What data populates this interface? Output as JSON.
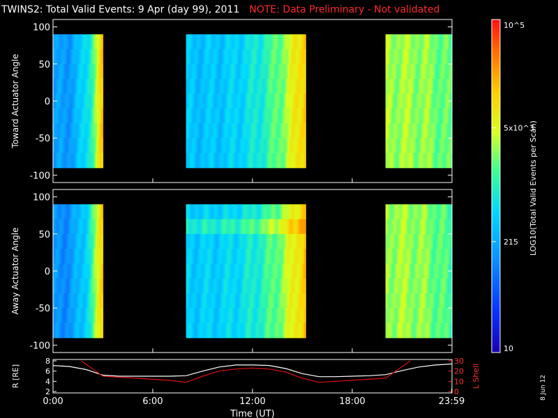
{
  "header": {
    "title": "TWINS2: Total Valid Events:  9 Apr (day  99), 2011",
    "note": "NOTE: Data Preliminary - Not validated"
  },
  "footer": {
    "date_stamp": "8 Jun 12"
  },
  "colors": {
    "note": "#ff2020",
    "axes": "#ffffff",
    "rshell_line": "#ffffff",
    "lshell_line": "#e01010"
  },
  "chart_data": [
    {
      "type": "heatmap",
      "ylabel": "Toward Actuator Angle",
      "xlim": [
        0,
        24
      ],
      "ylim": [
        -110,
        110
      ],
      "yticks": [
        -100,
        -50,
        0,
        50,
        100
      ],
      "data_y_range": [
        -90,
        90
      ],
      "segments": [
        {
          "start_hour": 0.0,
          "end_hour": 3.0,
          "start_level": 0.3,
          "end_level": 0.78
        },
        {
          "start_hour": 8.0,
          "end_hour": 15.2,
          "start_level": 0.38,
          "end_level": 0.8
        },
        {
          "start_hour": 20.0,
          "end_hour": 24.0,
          "start_level": 0.62,
          "end_level": 0.55
        }
      ]
    },
    {
      "type": "heatmap",
      "ylabel": "Away Actuator Angle",
      "xlim": [
        0,
        24
      ],
      "ylim": [
        -110,
        110
      ],
      "yticks": [
        -100,
        -50,
        0,
        50,
        100
      ],
      "data_y_range": [
        -90,
        90
      ],
      "segments": [
        {
          "start_hour": 0.0,
          "end_hour": 3.0,
          "start_level": 0.28,
          "end_level": 0.78
        },
        {
          "start_hour": 8.0,
          "end_hour": 15.2,
          "start_level": 0.4,
          "end_level": 0.8
        },
        {
          "start_hour": 20.0,
          "end_hour": 24.0,
          "start_level": 0.62,
          "end_level": 0.52
        }
      ]
    },
    {
      "type": "line",
      "xlabel": "Time (UT)",
      "xlim": [
        0,
        24
      ],
      "xticks": [
        "0:00",
        "6:00",
        "12:00",
        "18:00",
        "23:59"
      ],
      "ylabel_left": "R [RE]",
      "ylim_left": [
        2,
        8
      ],
      "yticks_left": [
        2,
        4,
        6,
        8
      ],
      "ylabel_right": "L Shell",
      "ylim_right": [
        0,
        30
      ],
      "yticks_right": [
        0,
        10,
        20,
        30
      ],
      "series": [
        {
          "axis": "left",
          "x": [
            0,
            1,
            2,
            3,
            4,
            5,
            6,
            7,
            8,
            9,
            10,
            11,
            12,
            13,
            14,
            15,
            16,
            17,
            18,
            19,
            20,
            21,
            22,
            23,
            24
          ],
          "y": [
            7.1,
            6.9,
            6.3,
            5.2,
            5.0,
            5.0,
            5.0,
            5.0,
            5.1,
            6.0,
            6.8,
            7.2,
            7.2,
            7.1,
            6.5,
            5.5,
            4.9,
            4.9,
            5.0,
            5.1,
            5.3,
            6.1,
            6.8,
            7.2,
            7.4
          ]
        },
        {
          "axis": "right",
          "x": [
            1.7,
            3,
            5,
            7,
            8,
            9,
            10,
            11,
            12,
            13,
            14,
            15,
            16,
            17,
            18,
            19,
            20,
            21.5
          ],
          "y": [
            30,
            15,
            13,
            11,
            9,
            15,
            20,
            22,
            23,
            22,
            19,
            13,
            9,
            10,
            11,
            12,
            13,
            30
          ]
        }
      ]
    }
  ],
  "colorbar": {
    "ylabel": "LOG10(Total Valid Events per Scan)",
    "tick_labels": [
      "10",
      "215",
      "5x10^3",
      "10^5"
    ],
    "tick_values": [
      10,
      215,
      5000,
      100000
    ]
  }
}
